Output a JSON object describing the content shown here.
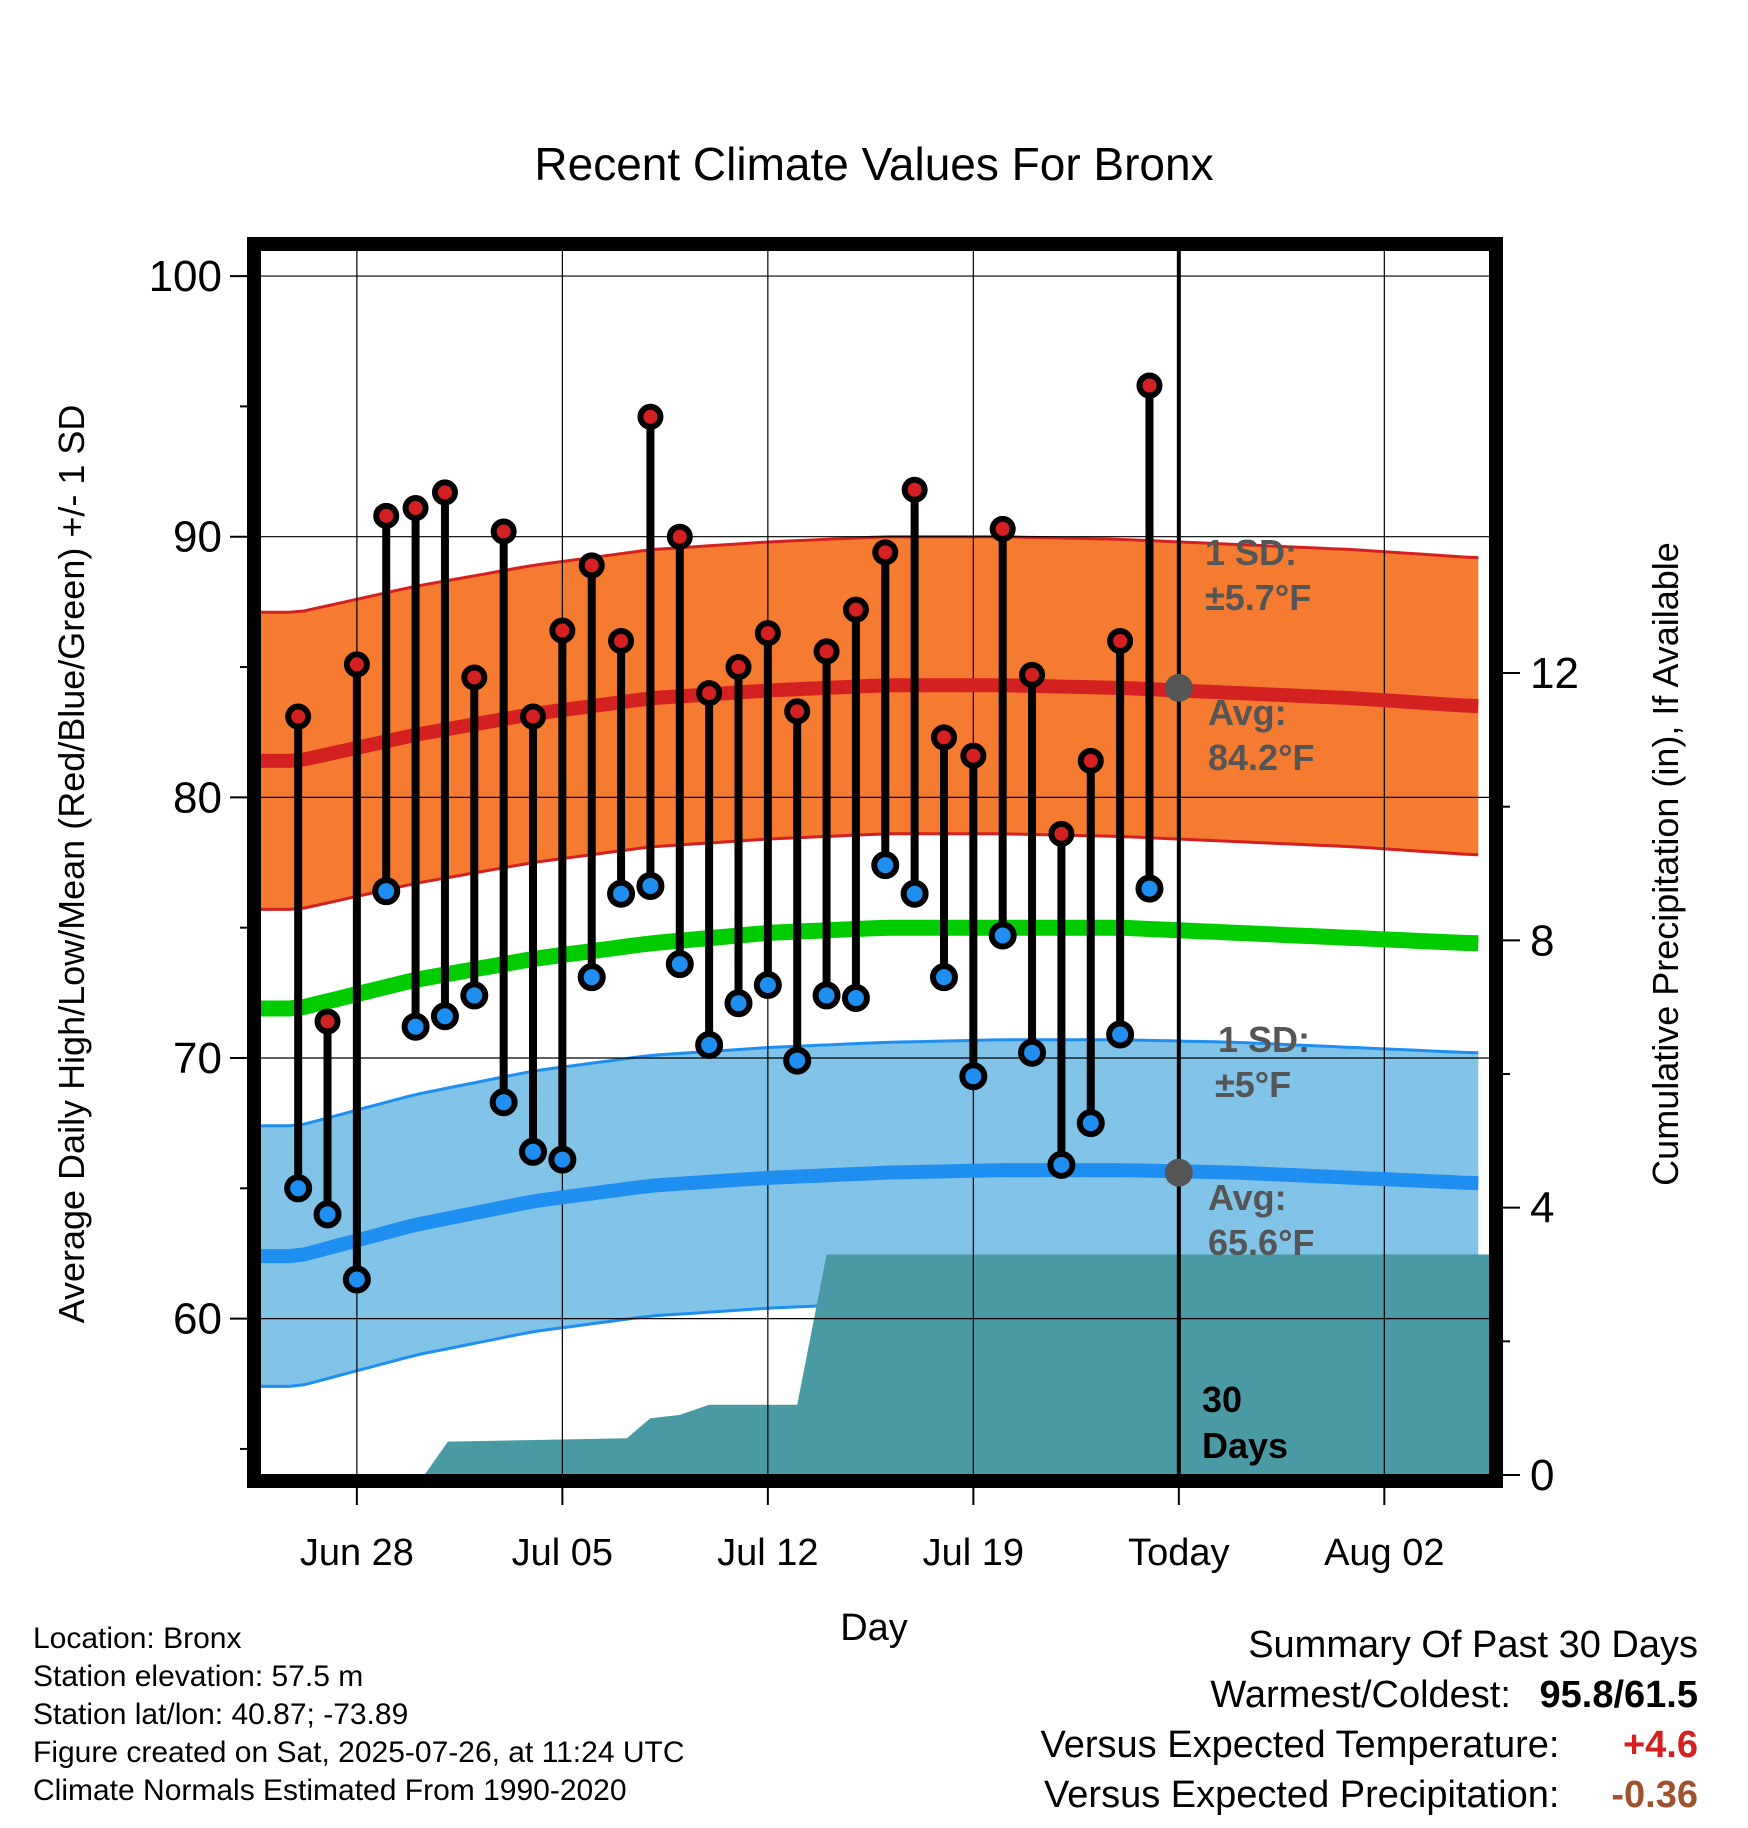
{
  "chart_data": {
    "type": "line",
    "title": "Recent Climate Values For Bronx",
    "xlabel": "Day",
    "ylabel_left": "Average Daily High/Low/Mean (Red/Blue/Green) +/- 1 SD",
    "ylabel_right": "Cumulative Precipitation (in), If Available",
    "ylim_left": [
      54,
      101
    ],
    "ylim_right": [
      0,
      18.33
    ],
    "yticks_left": [
      60,
      70,
      80,
      90,
      100
    ],
    "yticks_right": [
      0,
      4,
      8,
      12
    ],
    "xlim": [
      -3.3,
      38.6
    ],
    "xticks": [
      {
        "day": 0,
        "label": "Jun 28"
      },
      {
        "day": 7,
        "label": "Jul 05"
      },
      {
        "day": 14,
        "label": "Jul 12"
      },
      {
        "day": 21,
        "label": "Jul 19"
      },
      {
        "day": 28,
        "label": "Today"
      },
      {
        "day": 35,
        "label": "Aug 02"
      }
    ],
    "daily_high": [
      83.1,
      71.4,
      85.1,
      90.8,
      91.1,
      91.7,
      84.6,
      90.2,
      83.1,
      86.4,
      88.9,
      86.0,
      94.6,
      90.0,
      84.0,
      85.0,
      86.3,
      83.3,
      85.6,
      87.2,
      89.4,
      91.8,
      82.3,
      81.6,
      90.3,
      84.7,
      78.6,
      81.4,
      86.0,
      95.8
    ],
    "daily_low": [
      65.0,
      64.0,
      61.5,
      76.4,
      71.2,
      71.6,
      72.4,
      68.3,
      66.4,
      66.1,
      73.1,
      76.3,
      76.6,
      73.6,
      70.5,
      72.1,
      72.8,
      69.9,
      72.4,
      72.3,
      77.4,
      76.3,
      73.1,
      69.3,
      74.7,
      70.2,
      65.9,
      67.5,
      70.9,
      76.5
    ],
    "high_normal": [
      {
        "day": -2,
        "value": 81.4
      },
      {
        "day": 2,
        "value": 82.4
      },
      {
        "day": 6,
        "value": 83.2
      },
      {
        "day": 10,
        "value": 83.8
      },
      {
        "day": 14,
        "value": 84.1
      },
      {
        "day": 18,
        "value": 84.3
      },
      {
        "day": 22,
        "value": 84.3
      },
      {
        "day": 26,
        "value": 84.2
      },
      {
        "day": 30,
        "value": 84.0
      },
      {
        "day": 34,
        "value": 83.8
      },
      {
        "day": 38,
        "value": 83.5
      }
    ],
    "high_sd": 5.7,
    "low_normal": [
      {
        "day": -2,
        "value": 62.4
      },
      {
        "day": 2,
        "value": 63.6
      },
      {
        "day": 6,
        "value": 64.5
      },
      {
        "day": 10,
        "value": 65.1
      },
      {
        "day": 14,
        "value": 65.4
      },
      {
        "day": 18,
        "value": 65.6
      },
      {
        "day": 22,
        "value": 65.7
      },
      {
        "day": 26,
        "value": 65.7
      },
      {
        "day": 30,
        "value": 65.6
      },
      {
        "day": 34,
        "value": 65.4
      },
      {
        "day": 38,
        "value": 65.2
      }
    ],
    "low_sd": 5.0,
    "mean_normal": [
      {
        "day": -2,
        "value": 71.9
      },
      {
        "day": 2,
        "value": 73.0
      },
      {
        "day": 6,
        "value": 73.8
      },
      {
        "day": 10,
        "value": 74.4
      },
      {
        "day": 14,
        "value": 74.8
      },
      {
        "day": 18,
        "value": 75.0
      },
      {
        "day": 22,
        "value": 75.0
      },
      {
        "day": 26,
        "value": 75.0
      },
      {
        "day": 30,
        "value": 74.8
      },
      {
        "day": 34,
        "value": 74.6
      },
      {
        "day": 38,
        "value": 74.4
      }
    ],
    "precip_cumulative": [
      {
        "day": 2.3,
        "value": 0.0
      },
      {
        "day": 3.1,
        "value": 0.5
      },
      {
        "day": 9.2,
        "value": 0.55
      },
      {
        "day": 10.0,
        "value": 0.85
      },
      {
        "day": 11.0,
        "value": 0.9
      },
      {
        "day": 12.0,
        "value": 1.05
      },
      {
        "day": 14.0,
        "value": 1.05
      },
      {
        "day": 15.0,
        "value": 1.05
      },
      {
        "day": 16.0,
        "value": 3.3
      },
      {
        "day": 38.6,
        "value": 3.3
      }
    ],
    "today_marker": {
      "day": 28,
      "high_avg": 84.2,
      "low_avg": 65.6
    },
    "annotations": {
      "high_sd_title": "1 SD:",
      "high_sd_value": "±5.7°F",
      "high_avg_title": "Avg:",
      "high_avg_value": "84.2°F",
      "low_sd_title": "1 SD:",
      "low_sd_value": "±5°F",
      "low_avg_title": "Avg:",
      "low_avg_value": "65.6°F",
      "days_number": "30",
      "days_word": "Days"
    },
    "colors": {
      "high_band": "#f47b30",
      "high_line": "#d42020",
      "low_band": "#82c3e8",
      "low_line": "#1e8ff0",
      "mean_line": "#00cc00",
      "precip": "#4a9aa5",
      "high_dot": "#d42020",
      "low_dot": "#1e8ff0",
      "annotation_text": "#555555",
      "today_dot": "#555555"
    },
    "grid": true
  },
  "footer": {
    "location": "Location: Bronx",
    "elevation": "Station elevation: 57.5 m",
    "latlon": "Station lat/lon: 40.87; -73.89",
    "created": "Figure created on Sat, 2025-07-26, at 11:24 UTC",
    "normals": "Climate Normals Estimated From 1990-2020"
  },
  "summary": {
    "title": "Summary Of Past 30 Days",
    "warm_cold_label": "Warmest/Coldest:",
    "warm_value": "95.8",
    "cold_value": "61.5",
    "temp_label": "Versus Expected Temperature:",
    "temp_value": "+4.6",
    "temp_color": "#d42020",
    "precip_label": "Versus Expected Precipitation:",
    "precip_value": "-0.36",
    "precip_color": "#a0522d"
  }
}
